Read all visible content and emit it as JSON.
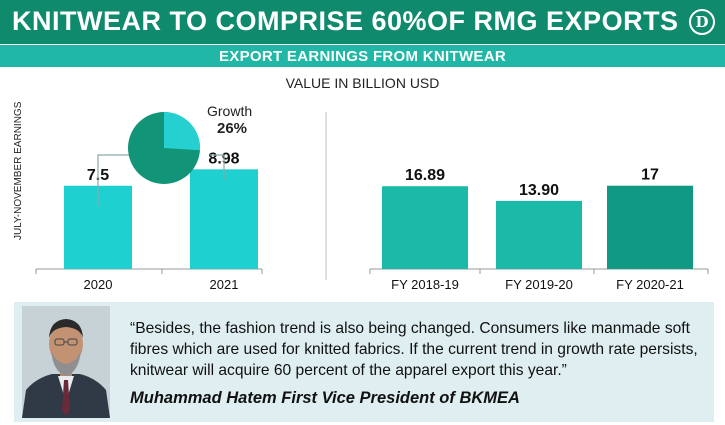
{
  "header": {
    "title": "KNITWEAR TO COMPRISE 60%OF RMG EXPORTS",
    "logo_text": "D",
    "subtitle": "EXPORT EARNINGS FROM KNITWEAR",
    "value_label": "VALUE IN BILLION USD"
  },
  "colors": {
    "header_green": "#0f8a6c",
    "band_teal": "#20b7a6",
    "bar_cyan": "#1fd0d0",
    "bar_teal": "#1bb9a7",
    "bar_dark": "#109a83",
    "pie_dark": "#129478",
    "pie_light": "#27d0d0",
    "quote_bg": "#dfeef0"
  },
  "chart_data": [
    {
      "type": "bar",
      "ylabel": "JULY-NOVEMBER EARNINGS",
      "categories": [
        "2020",
        "2021"
      ],
      "values": [
        7.5,
        8.98
      ],
      "data_labels": [
        "7.5",
        "8.98"
      ]
    },
    {
      "type": "pie",
      "labels": [
        "Growth"
      ],
      "values": [
        26
      ],
      "data_labels": [
        "26%"
      ]
    },
    {
      "type": "bar",
      "categories": [
        "FY 2018-19",
        "FY 2019-20",
        "FY 2020-21"
      ],
      "values": [
        16.89,
        13.9,
        17
      ],
      "data_labels": [
        "16.89",
        "13.90",
        "17"
      ]
    }
  ],
  "quote": {
    "text": "“Besides, the fashion trend is also being changed. Consumers like manmade soft fibres which are used for knitted fabrics. If the current trend in growth rate persists, knitwear will acquire 60 percent of the apparel export this year.”",
    "author": "Muhammad Hatem First Vice President of BKMEA"
  }
}
